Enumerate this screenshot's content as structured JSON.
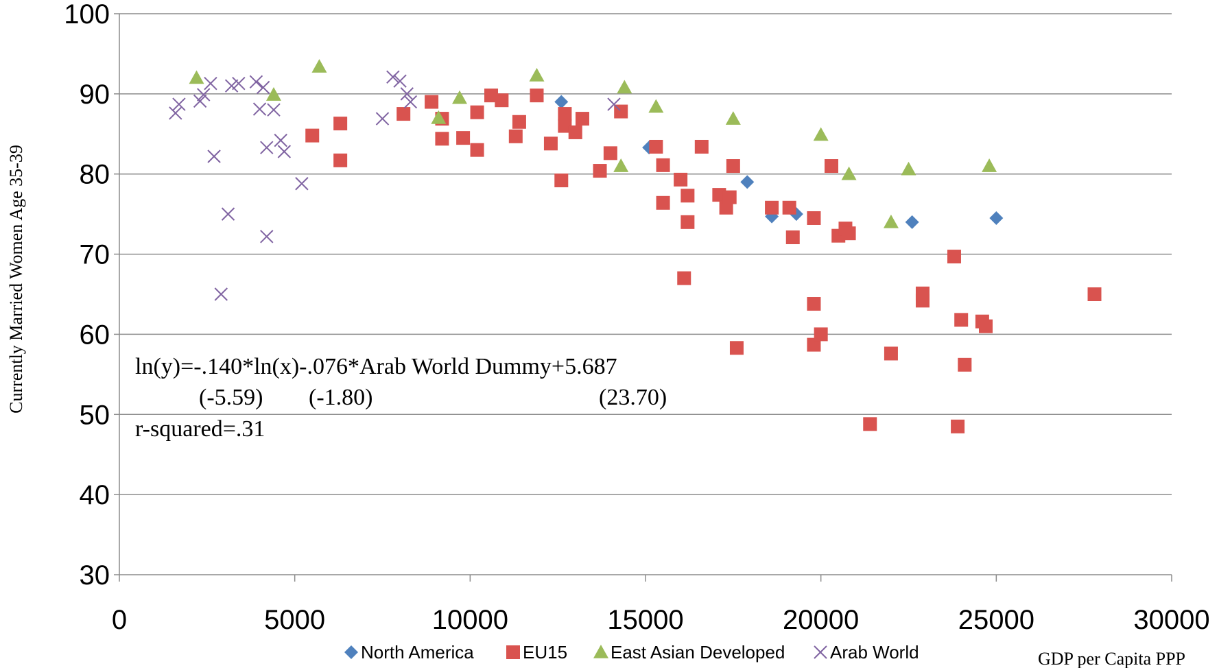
{
  "chart_data": {
    "type": "scatter",
    "xlabel": "GDP per Capita PPP",
    "ylabel": "Currently Married Women Age 35-39",
    "xlim": [
      0,
      30000
    ],
    "ylim": [
      30,
      100
    ],
    "x_ticks": [
      "0",
      "5000",
      "10000",
      "15000",
      "20000",
      "25000",
      "30000"
    ],
    "y_ticks": [
      "30",
      "40",
      "50",
      "60",
      "70",
      "80",
      "90",
      "100"
    ],
    "grid": "horizontal",
    "legend_position": "bottom",
    "annotations": {
      "equation": "ln(y)=-.140*ln(x)-.076*Arab World Dummy+5.687",
      "t_stat_1": "(-5.59)",
      "t_stat_2": "(-1.80)",
      "t_stat_3": "(23.70)",
      "r_squared": "r-squared=.31"
    },
    "series": [
      {
        "name": "North America",
        "marker": "diamond",
        "color": "#4f81bd",
        "points": [
          [
            12600,
            89
          ],
          [
            15100,
            83.3
          ],
          [
            17900,
            79
          ],
          [
            18600,
            74.7
          ],
          [
            19300,
            75
          ],
          [
            22600,
            74
          ],
          [
            25000,
            74.5
          ]
        ]
      },
      {
        "name": "EU15",
        "marker": "square",
        "color": "#d9534f",
        "points": [
          [
            5500,
            84.8
          ],
          [
            6300,
            86.3
          ],
          [
            6300,
            81.7
          ],
          [
            8100,
            87.5
          ],
          [
            8900,
            89
          ],
          [
            9200,
            86.9
          ],
          [
            9200,
            84.4
          ],
          [
            9800,
            84.5
          ],
          [
            10200,
            87.7
          ],
          [
            10200,
            83
          ],
          [
            10600,
            89.8
          ],
          [
            10900,
            89.2
          ],
          [
            11300,
            84.7
          ],
          [
            11400,
            86.5
          ],
          [
            11900,
            89.8
          ],
          [
            12300,
            83.8
          ],
          [
            12600,
            79.2
          ],
          [
            12700,
            87.5
          ],
          [
            12700,
            86
          ],
          [
            13000,
            85.2
          ],
          [
            13200,
            86.9
          ],
          [
            13700,
            80.4
          ],
          [
            14000,
            82.6
          ],
          [
            14300,
            87.8
          ],
          [
            15300,
            83.4
          ],
          [
            15500,
            81.1
          ],
          [
            15500,
            76.4
          ],
          [
            16000,
            79.3
          ],
          [
            16100,
            67
          ],
          [
            16200,
            77.3
          ],
          [
            16200,
            74
          ],
          [
            16600,
            83.4
          ],
          [
            17100,
            77.4
          ],
          [
            17300,
            75.8
          ],
          [
            17400,
            77.1
          ],
          [
            17500,
            81
          ],
          [
            17600,
            58.3
          ],
          [
            18600,
            75.8
          ],
          [
            19200,
            72.1
          ],
          [
            19100,
            75.8
          ],
          [
            19800,
            74.5
          ],
          [
            19800,
            63.8
          ],
          [
            19800,
            58.7
          ],
          [
            20000,
            60
          ],
          [
            20300,
            81
          ],
          [
            20500,
            72.3
          ],
          [
            20700,
            73.2
          ],
          [
            20800,
            72.6
          ],
          [
            21400,
            48.8
          ],
          [
            22000,
            57.6
          ],
          [
            22900,
            64.2
          ],
          [
            22900,
            65.1
          ],
          [
            23800,
            69.7
          ],
          [
            24000,
            61.8
          ],
          [
            23900,
            48.5
          ],
          [
            24100,
            56.2
          ],
          [
            24600,
            61.6
          ],
          [
            24700,
            61
          ],
          [
            27800,
            65
          ]
        ]
      },
      {
        "name": "East Asian Developed",
        "marker": "triangle",
        "color": "#9bbb59",
        "points": [
          [
            2200,
            92
          ],
          [
            4400,
            89.9
          ],
          [
            5700,
            93.4
          ],
          [
            9100,
            87
          ],
          [
            9700,
            89.5
          ],
          [
            11900,
            92.3
          ],
          [
            14300,
            81
          ],
          [
            14400,
            90.8
          ],
          [
            15300,
            88.4
          ],
          [
            17500,
            86.9
          ],
          [
            20000,
            84.9
          ],
          [
            20800,
            80
          ],
          [
            22000,
            74
          ],
          [
            22500,
            80.6
          ],
          [
            24800,
            81
          ]
        ]
      },
      {
        "name": "Arab World",
        "marker": "x",
        "color": "#8064a2",
        "points": [
          [
            1600,
            87.6
          ],
          [
            1700,
            88.7
          ],
          [
            2300,
            89.1
          ],
          [
            2400,
            89.9
          ],
          [
            2600,
            91.3
          ],
          [
            2700,
            82.2
          ],
          [
            2900,
            65
          ],
          [
            3100,
            75
          ],
          [
            3200,
            91
          ],
          [
            3400,
            91.3
          ],
          [
            3900,
            91.5
          ],
          [
            4000,
            88.1
          ],
          [
            4100,
            90.8
          ],
          [
            4200,
            83.3
          ],
          [
            4200,
            72.2
          ],
          [
            4400,
            88
          ],
          [
            4600,
            84.2
          ],
          [
            4700,
            82.8
          ],
          [
            5200,
            78.8
          ],
          [
            7500,
            86.9
          ],
          [
            7800,
            92.1
          ],
          [
            8000,
            91.6
          ],
          [
            8200,
            90
          ],
          [
            8300,
            89
          ],
          [
            14100,
            88.7
          ]
        ]
      }
    ]
  }
}
